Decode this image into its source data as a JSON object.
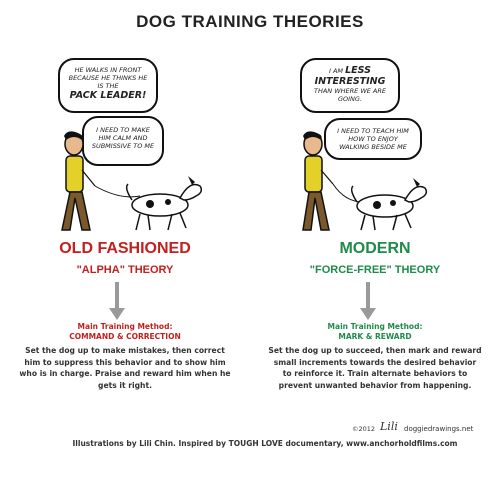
{
  "title": "DOG TRAINING THEORIES",
  "left": {
    "bubble1_part1": "HE WALKS IN FRONT BECAUSE HE THINKS HE IS THE",
    "bubble1_part2": "PACK LEADER!",
    "bubble2": "I NEED TO MAKE HIM CALM AND SUBMISSIVE TO ME",
    "heading": "OLD FASHIONED",
    "subheading": "\"ALPHA\" THEORY",
    "method_label": "Main Training Method:",
    "method_value": "COMMAND & CORRECTION",
    "description": "Set the dog up to make mistakes, then correct him to suppress this behavior and to show him who is in charge. Praise and reward him when he gets it right."
  },
  "right": {
    "bubble1_part1": "I AM",
    "bubble1_part2": "LESS INTERESTING",
    "bubble1_part3": "THAN WHERE WE ARE GOING.",
    "bubble2": "I NEED TO TEACH HIM HOW TO ENJOY WALKING BESIDE ME",
    "heading": "MODERN",
    "subheading": "\"FORCE-FREE\" THEORY",
    "method_label": "Main Training Method:",
    "method_value": "MARK & REWARD",
    "description": "Set the dog up to succeed, then mark and reward small increments towards the desired behavior to reinforce it. Train alternate behaviors to prevent unwanted behavior from happening."
  },
  "footer": {
    "copyright": "©2012",
    "signature": "Lili",
    "site": "doggiedrawings.net",
    "credits": "Illustrations by Lili Chin. Inspired by TOUGH LOVE documentary, www.anchorholdfilms.com"
  },
  "colors": {
    "old": "#c0211f",
    "modern": "#1f8a4c",
    "arrow": "#9a9a9a"
  }
}
